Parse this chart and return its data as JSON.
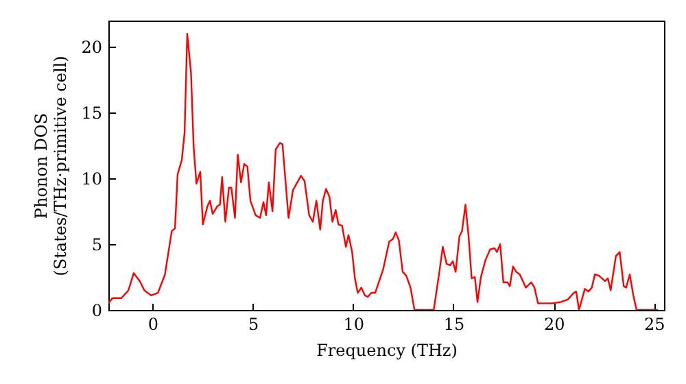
{
  "chart_data": {
    "type": "line",
    "xlabel": "Frequency (THz)",
    "ylabel": "Phonon DOS\n(States/THz·primitive cell)",
    "x": [
      -2.19,
      -2.0,
      -1.55,
      -1.2,
      -0.94,
      -0.64,
      -0.41,
      -0.07,
      0.27,
      0.62,
      0.96,
      1.12,
      1.25,
      1.46,
      1.6,
      1.73,
      1.92,
      2.05,
      2.19,
      2.38,
      2.51,
      2.74,
      2.86,
      3.0,
      3.24,
      3.36,
      3.47,
      3.63,
      3.81,
      3.93,
      4.11,
      4.25,
      4.41,
      4.57,
      4.73,
      4.88,
      5.14,
      5.36,
      5.53,
      5.66,
      5.8,
      5.98,
      6.14,
      6.35,
      6.48,
      6.78,
      7.0,
      7.4,
      7.58,
      7.81,
      7.99,
      8.17,
      8.36,
      8.49,
      8.65,
      8.82,
      8.97,
      9.13,
      9.27,
      9.45,
      9.64,
      9.77,
      9.95,
      10.09,
      10.23,
      10.41,
      10.59,
      10.73,
      10.91,
      11.1,
      11.5,
      11.8,
      11.99,
      12.12,
      12.28,
      12.47,
      12.65,
      12.86,
      13.06,
      14.02,
      14.3,
      14.47,
      14.66,
      14.84,
      14.97,
      15.11,
      15.3,
      15.43,
      15.6,
      15.75,
      15.91,
      16.07,
      16.2,
      16.37,
      16.6,
      16.83,
      17.05,
      17.17,
      17.33,
      17.49,
      17.7,
      17.81,
      17.97,
      18.13,
      18.31,
      18.61,
      18.88,
      19.04,
      19.22,
      19.91,
      20.36,
      20.71,
      21.0,
      21.12,
      21.26,
      21.55,
      21.73,
      21.9,
      22.05,
      22.26,
      22.56,
      22.7,
      22.84,
      23.1,
      23.29,
      23.49,
      23.61,
      23.79,
      23.97,
      24.13,
      25.2
    ],
    "series": [
      {
        "color": "#ff0000",
        "values": [
          0.5,
          0.9,
          0.9,
          1.5,
          2.8,
          2.2,
          1.5,
          1.1,
          1.3,
          2.7,
          6.0,
          6.2,
          10.3,
          11.4,
          13.5,
          21.0,
          18.0,
          12.4,
          9.6,
          10.5,
          6.5,
          7.9,
          8.3,
          7.3,
          7.9,
          8.0,
          10.1,
          6.7,
          9.3,
          9.3,
          7.0,
          11.8,
          9.7,
          11.1,
          10.9,
          8.3,
          7.2,
          7.0,
          8.2,
          7.2,
          9.7,
          7.5,
          12.2,
          12.7,
          12.6,
          7.0,
          9.1,
          10.2,
          9.8,
          7.2,
          6.7,
          8.3,
          6.1,
          8.3,
          9.2,
          8.6,
          6.7,
          7.6,
          6.5,
          6.4,
          4.8,
          5.7,
          4.4,
          2.4,
          1.3,
          1.7,
          1.1,
          1.0,
          1.3,
          1.3,
          3.1,
          5.2,
          5.4,
          5.9,
          5.3,
          2.9,
          2.6,
          1.7,
          0,
          0,
          2.9,
          4.8,
          3.5,
          3.4,
          3.7,
          2.9,
          5.6,
          6.0,
          8.0,
          5.7,
          2.4,
          2.5,
          0.6,
          2.5,
          3.8,
          4.6,
          4.7,
          4.4,
          5.0,
          2.1,
          2.1,
          1.8,
          3.3,
          2.9,
          2.7,
          1.7,
          2.1,
          1.7,
          0.5,
          0.5,
          0.6,
          0.8,
          1.3,
          1.4,
          0,
          1.6,
          1.4,
          1.7,
          2.7,
          2.6,
          2.2,
          2.4,
          1.5,
          4.1,
          4.4,
          1.8,
          1.7,
          2.7,
          1.1,
          0,
          0
        ]
      }
    ],
    "xlim": [
      -2.2,
      25.5
    ],
    "xticks": [
      0,
      5,
      10,
      15,
      20,
      25
    ],
    "ylim": [
      0,
      22
    ],
    "yticks": [
      0,
      5,
      10,
      15,
      20
    ],
    "grid": false,
    "marker": "none",
    "line_style": "solid"
  }
}
